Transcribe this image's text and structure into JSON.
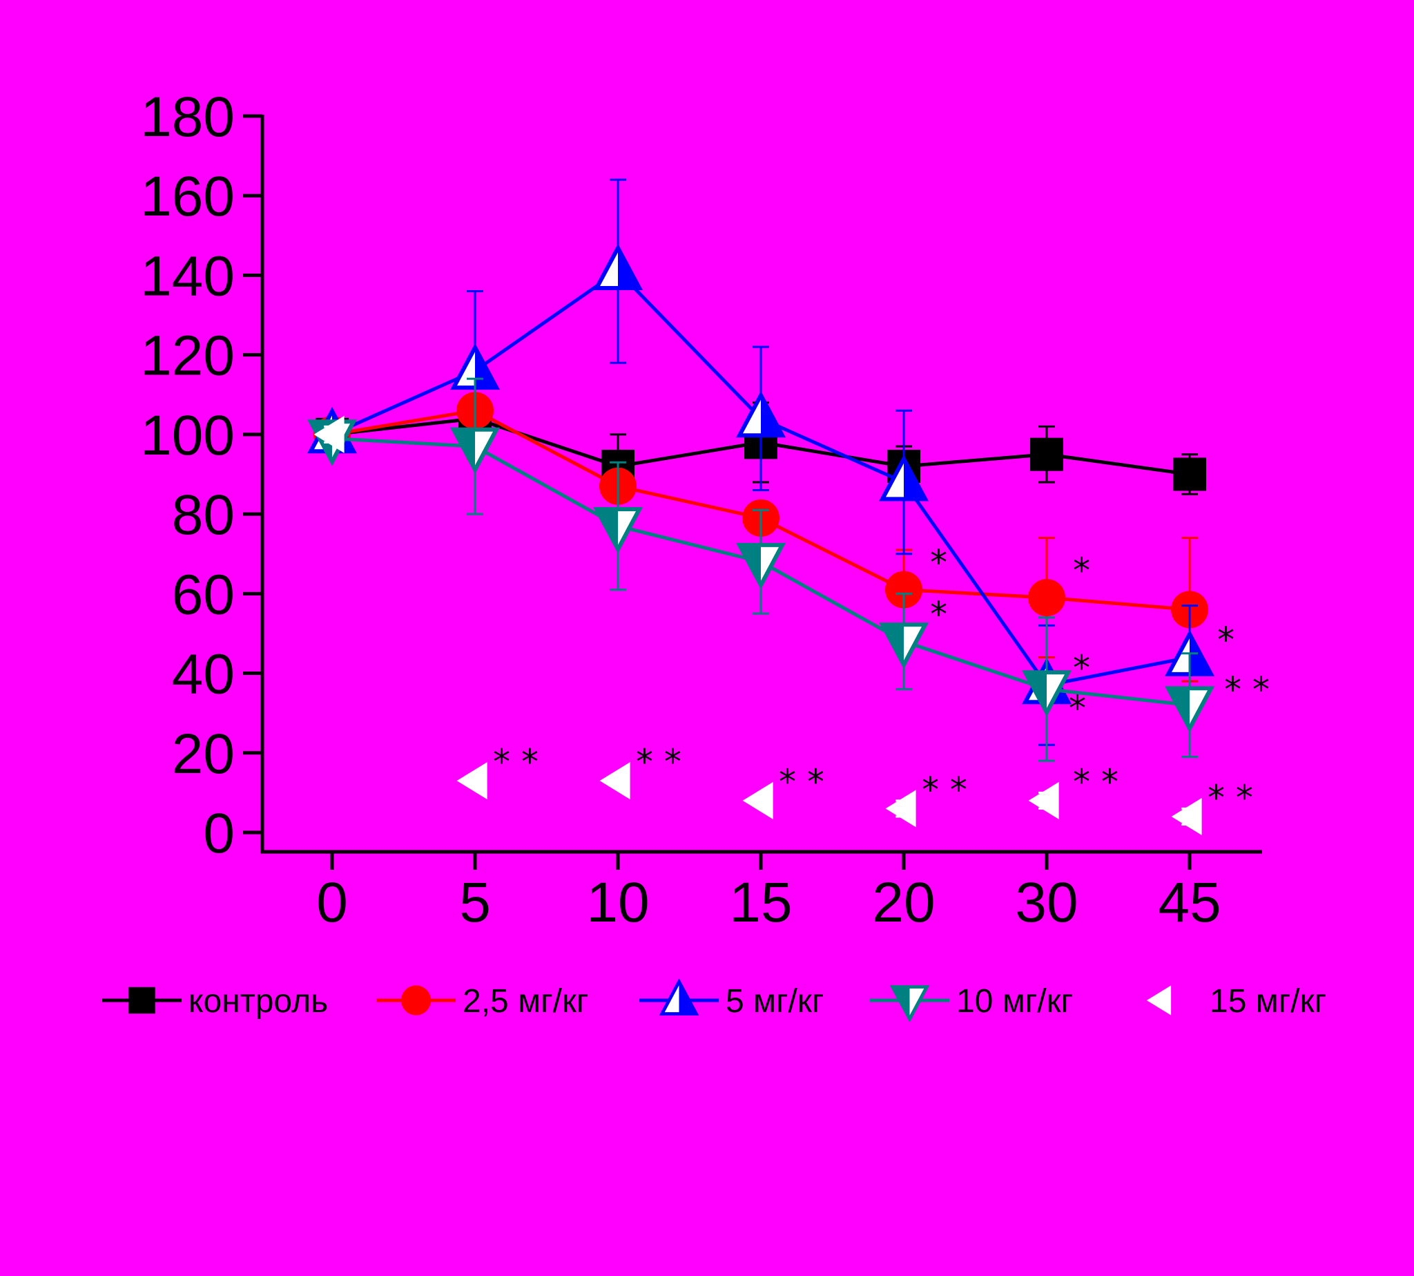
{
  "colors": {
    "background": "#ff00ff",
    "axis": "#000000",
    "control": "#000000",
    "dose_2_5": "#ff0000",
    "dose_5": "#0000ff",
    "dose_10": "#008080",
    "dose_15": "#ffffff"
  },
  "chart_data": {
    "type": "line",
    "title": "",
    "xlabel": "",
    "ylabel": "",
    "ylim": [
      0,
      180
    ],
    "yticks": [
      "0",
      "20",
      "40",
      "60",
      "80",
      "100",
      "120",
      "140",
      "160",
      "180"
    ],
    "categories": [
      "0",
      "5",
      "10",
      "15",
      "20",
      "30",
      "45"
    ],
    "grid": false,
    "legend_position": "bottom",
    "series": [
      {
        "name": "контроль",
        "marker": "square",
        "values": [
          100,
          104,
          92,
          98,
          92,
          95,
          90
        ],
        "errors": [
          2,
          10,
          8,
          10,
          5,
          7,
          5
        ],
        "annotations": [
          "",
          "",
          "",
          "",
          "",
          "",
          ""
        ]
      },
      {
        "name": "2,5 мг/кг",
        "marker": "circle",
        "values": [
          100,
          106,
          87,
          79,
          61,
          59,
          56
        ],
        "errors": [
          2,
          12,
          3,
          4,
          10,
          15,
          18
        ],
        "annotations": [
          "",
          "",
          "",
          "",
          "*",
          "*",
          ""
        ]
      },
      {
        "name": "5 мг/кг",
        "marker": "triangle-up",
        "values": [
          100,
          116,
          141,
          104,
          88,
          37,
          44
        ],
        "errors": [
          2,
          20,
          23,
          18,
          18,
          15,
          13
        ],
        "annotations": [
          "",
          "",
          "",
          "",
          "",
          "*",
          "*"
        ]
      },
      {
        "name": "10 мг/кг",
        "marker": "triangle-down",
        "values": [
          99,
          97,
          77,
          68,
          48,
          36,
          32
        ],
        "errors": [
          2,
          17,
          16,
          13,
          12,
          18,
          13
        ],
        "annotations": [
          "",
          "",
          "",
          "",
          "*",
          "*",
          "**"
        ]
      },
      {
        "name": "15 мг/кг",
        "marker": "triangle-left",
        "values": [
          100,
          13,
          13,
          8,
          6,
          8,
          4
        ],
        "errors": [
          2,
          0,
          0,
          1,
          2,
          2,
          2
        ],
        "annotations": [
          "",
          "**",
          "**",
          "**",
          "**",
          "**",
          "**"
        ]
      }
    ]
  }
}
